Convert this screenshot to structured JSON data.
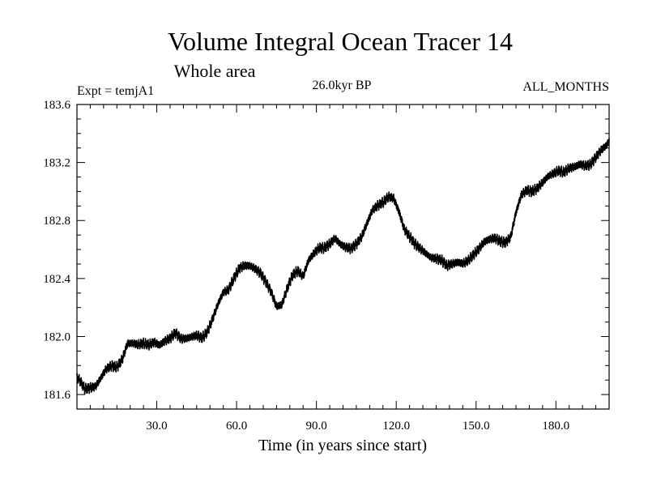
{
  "header": {
    "title": "Volume Integral Ocean Tracer 14",
    "subtitle": "Whole area",
    "experiment": "Expt = temjA1",
    "period": "26.0kyr BP",
    "months": "ALL_MONTHS"
  },
  "chart_data": {
    "type": "line",
    "title": "Volume Integral Ocean Tracer 14",
    "subtitle": "Whole area",
    "xlabel": "Time (in years since start)",
    "ylabel": "",
    "xlim": [
      0,
      200
    ],
    "ylim": [
      181.5,
      183.6
    ],
    "xticks": [
      "30.0",
      "60.0",
      "90.0",
      "120.0",
      "150.0",
      "180.0"
    ],
    "yticks": [
      "181.6",
      "182.0",
      "182.4",
      "182.8",
      "183.2",
      "183.6"
    ],
    "grid": false,
    "series": [
      {
        "x": [
          0,
          1,
          3,
          5,
          7,
          9,
          11,
          13,
          15,
          17,
          19,
          21,
          23,
          25,
          27,
          29,
          31,
          33,
          35,
          37,
          39,
          41,
          43,
          45,
          47,
          49,
          51,
          53,
          55,
          57,
          59,
          61,
          63,
          65,
          67,
          69,
          71,
          73,
          75,
          77,
          79,
          81,
          83,
          85,
          87,
          89,
          91,
          93,
          95,
          97,
          99,
          101,
          103,
          105,
          107,
          109,
          111,
          113,
          115,
          117,
          119,
          121,
          123,
          125,
          127,
          129,
          131,
          133,
          135,
          137,
          139,
          141,
          143,
          145,
          147,
          149,
          151,
          153,
          155,
          157,
          159,
          161,
          163,
          165,
          167,
          169,
          171,
          173,
          175,
          177,
          179,
          181,
          183,
          185,
          187,
          189,
          191,
          193,
          195,
          197,
          199,
          200
        ],
        "y": [
          181.72,
          181.7,
          181.64,
          181.65,
          181.66,
          181.72,
          181.78,
          181.8,
          181.79,
          181.84,
          181.95,
          181.95,
          181.94,
          181.95,
          181.94,
          181.96,
          181.94,
          181.97,
          181.99,
          182.03,
          181.99,
          181.99,
          182.0,
          182.01,
          181.99,
          182.03,
          182.12,
          182.22,
          182.3,
          182.32,
          182.4,
          182.47,
          182.49,
          182.49,
          182.47,
          182.44,
          182.38,
          182.31,
          182.21,
          182.22,
          182.33,
          182.42,
          182.45,
          182.41,
          182.52,
          182.57,
          182.61,
          182.61,
          182.64,
          182.68,
          182.64,
          182.62,
          182.61,
          182.64,
          182.69,
          182.78,
          182.87,
          182.9,
          182.92,
          182.96,
          182.95,
          182.86,
          182.74,
          182.69,
          182.64,
          182.61,
          182.58,
          182.55,
          182.54,
          182.53,
          182.49,
          182.5,
          182.51,
          182.5,
          182.52,
          182.56,
          182.6,
          182.65,
          182.67,
          182.68,
          182.66,
          182.65,
          182.69,
          182.86,
          182.98,
          183.01,
          183.0,
          183.02,
          183.06,
          183.1,
          183.12,
          183.14,
          183.13,
          183.16,
          183.17,
          183.19,
          183.18,
          183.19,
          183.24,
          183.29,
          183.32,
          183.35
        ]
      }
    ]
  }
}
